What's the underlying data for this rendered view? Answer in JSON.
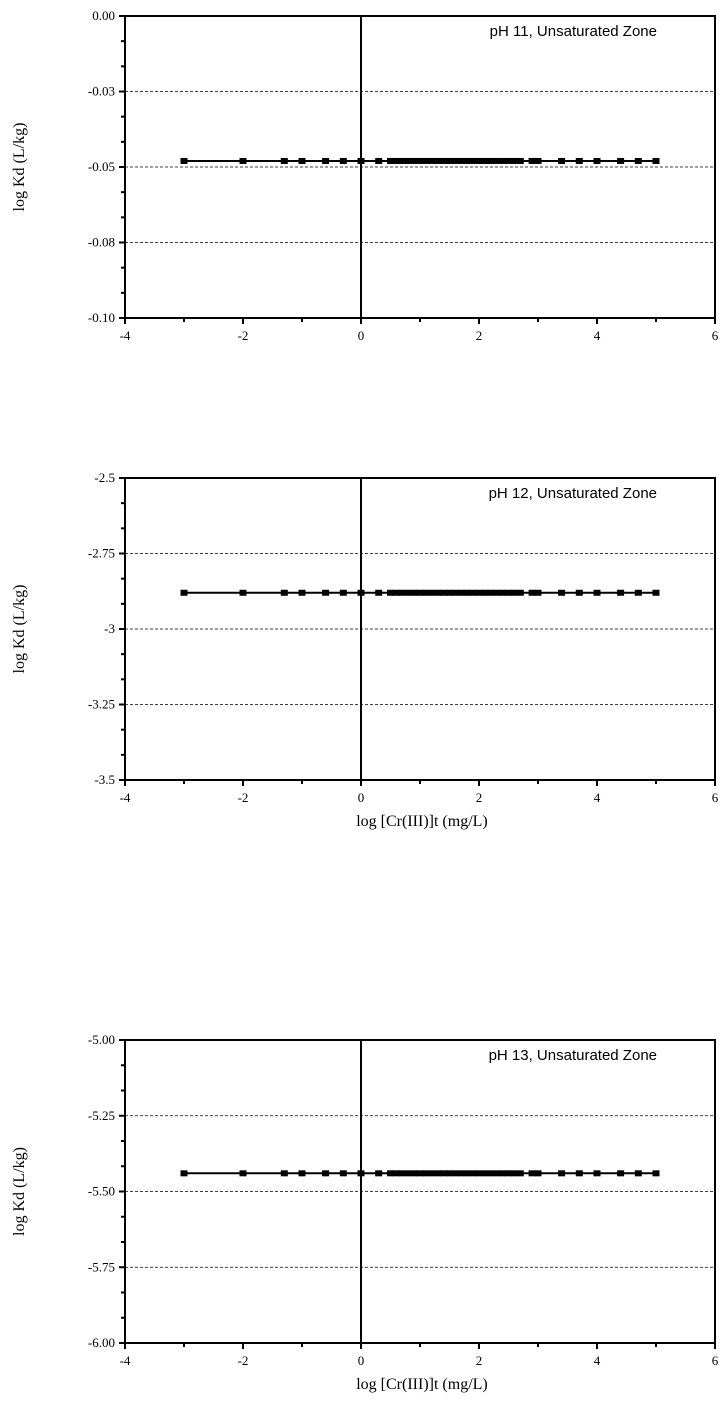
{
  "chart_data": [
    {
      "type": "line",
      "annotation": "pH 11, Unsaturated Zone",
      "ylabel": "log Kd (L/kg)",
      "xlabel": "",
      "xlim": [
        -4,
        6
      ],
      "ylim": [
        -0.1,
        0.0
      ],
      "xticks": [
        -4,
        -2,
        0,
        2,
        4,
        6
      ],
      "xtick_labels": [
        "-4",
        "-2",
        "0",
        "2",
        "4",
        "6"
      ],
      "yticks": [
        0.0,
        -0.025,
        -0.05,
        -0.075,
        -0.1
      ],
      "ytick_labels": [
        "0.00",
        "-0.03",
        "-0.05",
        "-0.08",
        "-0.10"
      ],
      "grid": "horizontal dashed",
      "x": [
        -3.0,
        -2.0,
        -1.3,
        -1.0,
        -0.6,
        -0.3,
        0.0,
        0.3,
        0.5,
        0.6,
        0.7,
        0.8,
        0.9,
        1.0,
        1.1,
        1.2,
        1.3,
        1.4,
        1.5,
        1.6,
        1.7,
        1.8,
        1.9,
        2.0,
        2.1,
        2.2,
        2.3,
        2.4,
        2.5,
        2.6,
        2.7,
        2.9,
        3.0,
        3.4,
        3.7,
        4.0,
        4.4,
        4.7,
        5.0
      ],
      "y": [
        -0.048,
        -0.048,
        -0.048,
        -0.048,
        -0.048,
        -0.048,
        -0.048,
        -0.048,
        -0.048,
        -0.048,
        -0.048,
        -0.048,
        -0.048,
        -0.048,
        -0.048,
        -0.048,
        -0.048,
        -0.048,
        -0.048,
        -0.048,
        -0.048,
        -0.048,
        -0.048,
        -0.048,
        -0.048,
        -0.048,
        -0.048,
        -0.048,
        -0.048,
        -0.048,
        -0.048,
        -0.048,
        -0.048,
        -0.048,
        -0.048,
        -0.048,
        -0.048,
        -0.048,
        -0.048
      ]
    },
    {
      "type": "line",
      "annotation": "pH 12, Unsaturated Zone",
      "ylabel": "log Kd (L/kg)",
      "xlabel": "log [Cr(III)]t (mg/L)",
      "xlim": [
        -4,
        6
      ],
      "ylim": [
        -3.5,
        -2.5
      ],
      "xticks": [
        -4,
        -2,
        0,
        2,
        4,
        6
      ],
      "xtick_labels": [
        "-4",
        "-2",
        "0",
        "2",
        "4",
        "6"
      ],
      "yticks": [
        -2.5,
        -2.75,
        -3.0,
        -3.25,
        -3.5
      ],
      "ytick_labels": [
        "-2.5",
        "-2.75",
        "-3",
        "-3.25",
        "-3.5"
      ],
      "grid": "horizontal dashed",
      "x": [
        -3.0,
        -2.0,
        -1.3,
        -1.0,
        -0.6,
        -0.3,
        0.0,
        0.3,
        0.5,
        0.6,
        0.7,
        0.8,
        0.9,
        1.0,
        1.1,
        1.2,
        1.3,
        1.4,
        1.5,
        1.6,
        1.7,
        1.8,
        1.9,
        2.0,
        2.1,
        2.2,
        2.3,
        2.4,
        2.5,
        2.6,
        2.7,
        2.9,
        3.0,
        3.4,
        3.7,
        4.0,
        4.4,
        4.7,
        5.0
      ],
      "y": [
        -2.88,
        -2.88,
        -2.88,
        -2.88,
        -2.88,
        -2.88,
        -2.88,
        -2.88,
        -2.88,
        -2.88,
        -2.88,
        -2.88,
        -2.88,
        -2.88,
        -2.88,
        -2.88,
        -2.88,
        -2.88,
        -2.88,
        -2.88,
        -2.88,
        -2.88,
        -2.88,
        -2.88,
        -2.88,
        -2.88,
        -2.88,
        -2.88,
        -2.88,
        -2.88,
        -2.88,
        -2.88,
        -2.88,
        -2.88,
        -2.88,
        -2.88,
        -2.88,
        -2.88,
        -2.88
      ]
    },
    {
      "type": "line",
      "annotation": "pH 13, Unsaturated Zone",
      "ylabel": "log Kd (L/kg)",
      "xlabel": "log [Cr(III)]t (mg/L)",
      "xlim": [
        -4,
        6
      ],
      "ylim": [
        -6.0,
        -5.0
      ],
      "xticks": [
        -4,
        -2,
        0,
        2,
        4,
        6
      ],
      "xtick_labels": [
        "-4",
        "-2",
        "0",
        "2",
        "4",
        "6"
      ],
      "yticks": [
        -5.0,
        -5.25,
        -5.5,
        -5.75,
        -6.0
      ],
      "ytick_labels": [
        "-5.00",
        "-5.25",
        "-5.50",
        "-5.75",
        "-6.00"
      ],
      "grid": "horizontal dashed",
      "x": [
        -3.0,
        -2.0,
        -1.3,
        -1.0,
        -0.6,
        -0.3,
        0.0,
        0.3,
        0.5,
        0.6,
        0.7,
        0.8,
        0.9,
        1.0,
        1.1,
        1.2,
        1.3,
        1.4,
        1.5,
        1.6,
        1.7,
        1.8,
        1.9,
        2.0,
        2.1,
        2.2,
        2.3,
        2.4,
        2.5,
        2.6,
        2.7,
        2.9,
        3.0,
        3.4,
        3.7,
        4.0,
        4.4,
        4.7,
        5.0
      ],
      "y": [
        -5.44,
        -5.44,
        -5.44,
        -5.44,
        -5.44,
        -5.44,
        -5.44,
        -5.44,
        -5.44,
        -5.44,
        -5.44,
        -5.44,
        -5.44,
        -5.44,
        -5.44,
        -5.44,
        -5.44,
        -5.44,
        -5.44,
        -5.44,
        -5.44,
        -5.44,
        -5.44,
        -5.44,
        -5.44,
        -5.44,
        -5.44,
        -5.44,
        -5.44,
        -5.44,
        -5.44,
        -5.44,
        -5.44,
        -5.44,
        -5.44,
        -5.44,
        -5.44,
        -5.44,
        -5.44
      ]
    }
  ]
}
